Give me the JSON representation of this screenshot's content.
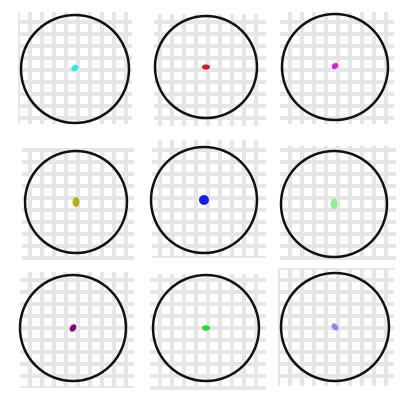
{
  "board": {
    "tiles": [
      {
        "row": 1,
        "col": 1,
        "dot_color": "#33e6f2",
        "dot_shape": "ellipse-small-tilted"
      },
      {
        "row": 1,
        "col": 2,
        "dot_color": "#e8131b",
        "dot_shape": "ellipse-small-wide"
      },
      {
        "row": 1,
        "col": 3,
        "dot_color": "#e21ad8",
        "dot_shape": "ellipse-small-tilted"
      },
      {
        "row": 2,
        "col": 1,
        "dot_color": "#b9b00f",
        "dot_shape": "ellipse-tall"
      },
      {
        "row": 2,
        "col": 2,
        "dot_color": "#0b24e8",
        "dot_shape": "circle"
      },
      {
        "row": 2,
        "col": 3,
        "dot_color": "#8ef08e",
        "dot_shape": "ellipse-tall"
      },
      {
        "row": 3,
        "col": 1,
        "dot_color": "#7e0a76",
        "dot_shape": "ellipse-small-tilted"
      },
      {
        "row": 3,
        "col": 2,
        "dot_color": "#15e22a",
        "dot_shape": "ellipse-small-wide"
      },
      {
        "row": 3,
        "col": 3,
        "dot_color": "#8a8af0",
        "dot_shape": "ellipse-small-tilted"
      }
    ],
    "style": {
      "grid_background": "#e6e6e6",
      "grid_lines": "#ffffff",
      "ring_color": "#111111"
    }
  }
}
